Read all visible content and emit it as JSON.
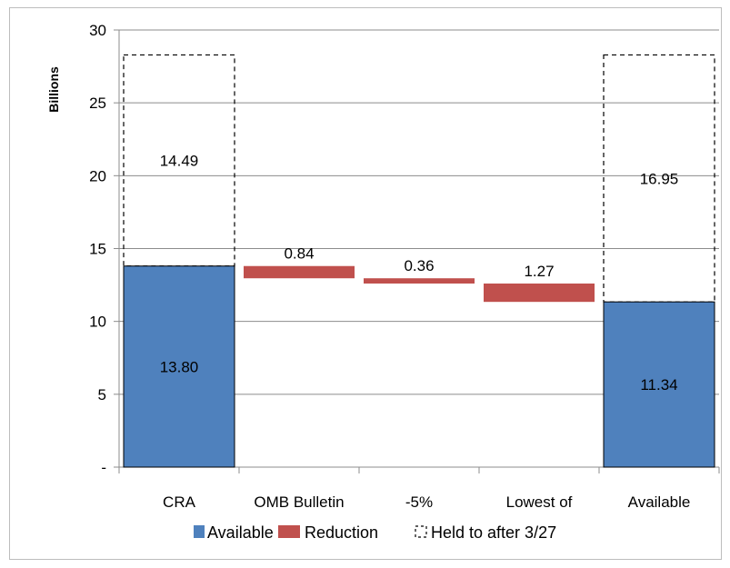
{
  "chart_data": {
    "type": "bar",
    "subtype": "waterfall",
    "ylabel": "Billions",
    "ylim": [
      0,
      30
    ],
    "yticks": [
      0,
      5,
      10,
      15,
      20,
      25,
      30
    ],
    "ytick_labels": [
      "-",
      "5",
      "10",
      "15",
      "20",
      "25",
      "30"
    ],
    "grid": "horizontal",
    "legend_position": "bottom",
    "categories": [
      "CRA",
      "OMB Bulletin",
      "-5%",
      "Lowest of",
      "Available"
    ],
    "series": [
      {
        "name": "Available",
        "color": "#4f81bd",
        "style": "solid",
        "values": [
          13.8,
          null,
          null,
          null,
          11.34
        ],
        "labels": [
          "13.80",
          "",
          "",
          "",
          "11.34"
        ]
      },
      {
        "name": "Reduction",
        "color": "#c0504d",
        "style": "solid",
        "floating": [
          [
            null,
            null
          ],
          [
            12.96,
            13.8
          ],
          [
            12.6,
            12.96
          ],
          [
            11.34,
            12.6
          ],
          [
            null,
            null
          ]
        ],
        "values": [
          null,
          0.84,
          0.36,
          1.27,
          null
        ],
        "labels": [
          "",
          "0.84",
          "0.36",
          "1.27",
          ""
        ]
      },
      {
        "name": "Held to after 3/27",
        "color": "#000000",
        "style": "dashed",
        "stacked_on": "Available",
        "values": [
          14.49,
          null,
          null,
          null,
          16.95
        ],
        "labels": [
          "14.49",
          "",
          "",
          "",
          "16.95"
        ]
      }
    ]
  }
}
